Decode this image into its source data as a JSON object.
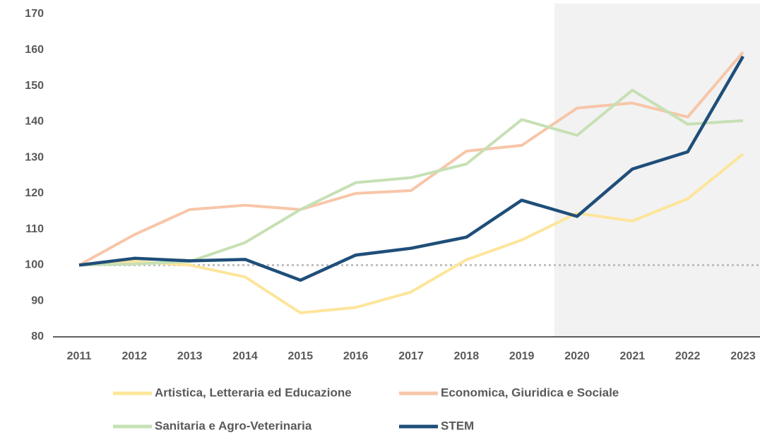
{
  "chart_data": {
    "type": "line",
    "categories": [
      "2011",
      "2012",
      "2013",
      "2014",
      "2015",
      "2016",
      "2017",
      "2018",
      "2019",
      "2020",
      "2021",
      "2022",
      "2023"
    ],
    "ylim": [
      80,
      170
    ],
    "yticks": [
      80,
      90,
      100,
      110,
      120,
      130,
      140,
      150,
      160,
      170
    ],
    "reference_line": 100,
    "series": [
      {
        "name": "Artistica, Letteraria ed Educazione",
        "color": "#fde59a",
        "values": [
          100,
          101,
          100,
          96.7,
          86.7,
          88.2,
          92.5,
          101.5,
          107,
          114.5,
          112.3,
          118.5,
          131
        ]
      },
      {
        "name": "Economica, Giuridica e Sociale",
        "color": "#f7c6a8",
        "values": [
          100,
          108.5,
          115.5,
          116.7,
          115.5,
          120,
          120.8,
          131.8,
          133.4,
          143.8,
          145.2,
          141.3,
          159.4
        ]
      },
      {
        "name": "Sanitaria e Agro-Veterinaria",
        "color": "#c6e0b4",
        "values": [
          100,
          100.3,
          101,
          106.3,
          115.5,
          123,
          124.4,
          128.2,
          140.6,
          136.2,
          148.8,
          139.3,
          140.3
        ]
      },
      {
        "name": "STEM",
        "color": "#1f4e79",
        "values": [
          100,
          101.9,
          101.2,
          101.6,
          95.8,
          102.8,
          104.7,
          107.8,
          118.1,
          113.6,
          126.8,
          131.6,
          158.2
        ]
      }
    ]
  }
}
